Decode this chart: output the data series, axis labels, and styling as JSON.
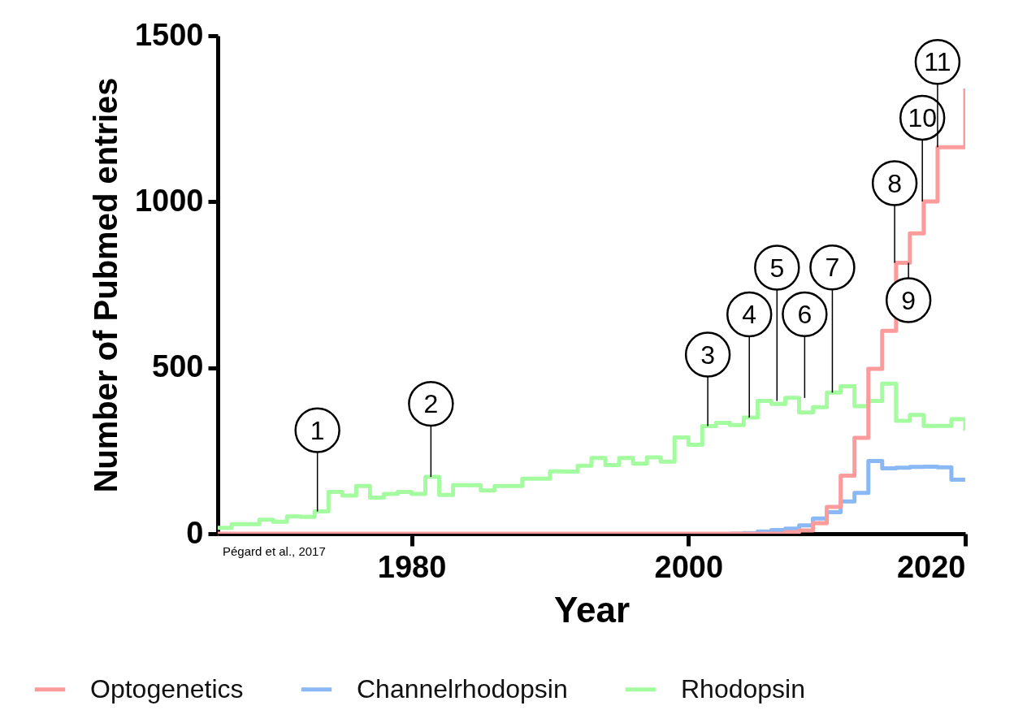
{
  "chart_data": {
    "type": "step",
    "xlabel": "Year",
    "ylabel": "Number of Pubmed entries",
    "x": [
      1966,
      1967,
      1968,
      1969,
      1970,
      1971,
      1972,
      1973,
      1974,
      1975,
      1976,
      1977,
      1978,
      1979,
      1980,
      1981,
      1982,
      1983,
      1984,
      1985,
      1986,
      1987,
      1988,
      1989,
      1990,
      1991,
      1992,
      1993,
      1994,
      1995,
      1996,
      1997,
      1998,
      1999,
      2000,
      2001,
      2002,
      2003,
      2004,
      2005,
      2006,
      2007,
      2008,
      2009,
      2010,
      2011,
      2012,
      2013,
      2014,
      2015,
      2016,
      2017,
      2018,
      2019,
      2020
    ],
    "series": [
      {
        "name": "Optogenetics",
        "color": "#fc9b9b",
        "values": [
          0,
          0,
          0,
          0,
          0,
          0,
          0,
          0,
          0,
          0,
          0,
          0,
          0,
          0,
          0,
          0,
          0,
          0,
          0,
          0,
          0,
          0,
          0,
          0,
          0,
          0,
          0,
          0,
          0,
          0,
          0,
          0,
          0,
          0,
          0,
          0,
          0,
          0,
          0,
          0,
          0,
          5,
          10,
          32,
          81,
          175,
          289,
          497,
          611,
          816,
          905,
          1001,
          1164,
          1164,
          1341
        ]
      },
      {
        "name": "Channelrhodopsin",
        "color": "#8ab8f5",
        "values": [
          null,
          null,
          null,
          null,
          null,
          null,
          null,
          null,
          null,
          null,
          null,
          null,
          null,
          null,
          null,
          null,
          null,
          null,
          null,
          null,
          null,
          null,
          null,
          null,
          null,
          null,
          null,
          null,
          null,
          null,
          null,
          null,
          null,
          null,
          null,
          null,
          null,
          0,
          2,
          7,
          11,
          15,
          25,
          46,
          65,
          97,
          123,
          219,
          197,
          199,
          201,
          202,
          200,
          163,
          163
        ]
      },
      {
        "name": "Rhodopsin",
        "color": "#a4fba0",
        "values": [
          18,
          29,
          29,
          42,
          36,
          52,
          51,
          67,
          126,
          115,
          144,
          109,
          120,
          126,
          120,
          171,
          117,
          146,
          146,
          130,
          144,
          144,
          166,
          166,
          188,
          187,
          205,
          228,
          207,
          228,
          211,
          230,
          217,
          290,
          268,
          324,
          334,
          327,
          350,
          400,
          391,
          409,
          365,
          381,
          425,
          444,
          384,
          400,
          452,
          340,
          358,
          325,
          325,
          345,
          310
        ]
      }
    ],
    "xlim": [
      1966,
      2020
    ],
    "xticks": [
      1980,
      2000,
      2020
    ],
    "ylim": [
      0,
      1500
    ],
    "yticks": [
      0,
      500,
      1000,
      1500
    ],
    "legend": "bottom",
    "annotations": [
      {
        "text": "1",
        "x": 1973.2,
        "y": 67
      },
      {
        "text": "2",
        "x": 1981.4,
        "y": 171
      },
      {
        "text": "3",
        "x": 2001.4,
        "y": 324
      },
      {
        "text": "4",
        "x": 2004.4,
        "y": 350
      },
      {
        "text": "5",
        "x": 2006.4,
        "y": 400
      },
      {
        "text": "6",
        "x": 2008.4,
        "y": 409
      },
      {
        "text": "7",
        "x": 2010.4,
        "y": 425
      },
      {
        "text": "8",
        "x": 2014.9,
        "y": 816
      },
      {
        "text": "9",
        "x": 2015.9,
        "y": 816
      },
      {
        "text": "10",
        "x": 2016.9,
        "y": 1001
      },
      {
        "text": "11",
        "x": 2018,
        "y": 1164
      },
      "Pégard et al., 2017"
    ]
  }
}
